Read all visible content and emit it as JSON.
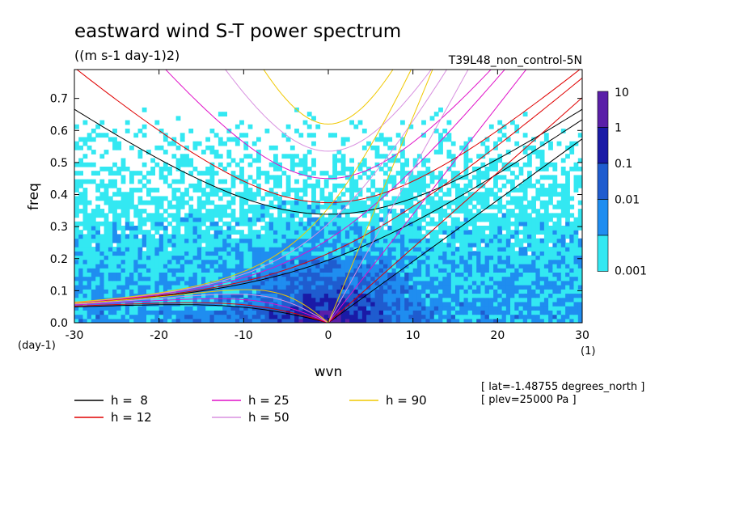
{
  "chart_data": {
    "type": "heatmap",
    "title": "eastward wind S-T power spectrum",
    "units": "((m s-1 day-1)2)",
    "run_label": "T39L48_non_control-5N",
    "xlabel": "wvn",
    "ylabel": "freq",
    "x_unit": "(1)",
    "y_unit": "(day-1)",
    "xlim": [
      -30,
      30
    ],
    "ylim": [
      0,
      0.79
    ],
    "x_ticks": [
      -30,
      -20,
      -10,
      0,
      10,
      20,
      30
    ],
    "x_tick_labels": [
      "-30",
      "-20",
      "-10",
      "0",
      "10",
      "20",
      "30"
    ],
    "y_ticks": [
      0.0,
      0.1,
      0.2,
      0.3,
      0.4,
      0.5,
      0.6,
      0.7
    ],
    "y_tick_labels": [
      "0.0",
      "0.1",
      "0.2",
      "0.3",
      "0.4",
      "0.5",
      "0.6",
      "0.7"
    ],
    "colorbar": {
      "levels": [
        "10",
        "1",
        "0.1",
        "0.01",
        "0.001"
      ],
      "colors": [
        "#5a1fa8",
        "#1a1aa6",
        "#1f5ccf",
        "#1f8df0",
        "#33e8f2"
      ]
    },
    "dispersion_legend": [
      {
        "label": "h =  8",
        "color": "#000000"
      },
      {
        "label": "h = 12",
        "color": "#e00000"
      },
      {
        "label": "h = 25",
        "color": "#e010c8"
      },
      {
        "label": "h = 50",
        "color": "#d890e0"
      },
      {
        "label": "h = 90",
        "color": "#f0c800"
      }
    ],
    "equivalent_depths": [
      8,
      12,
      25,
      50,
      90
    ],
    "info": [
      "[ lat=-1.48755 degrees_north ]",
      "[ plev=25000 Pa ]"
    ]
  }
}
